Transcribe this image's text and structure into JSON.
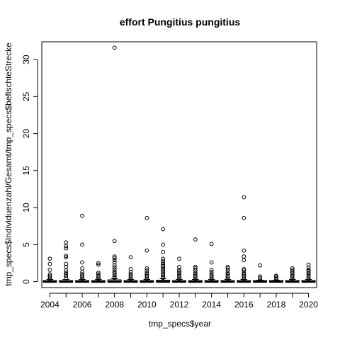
{
  "chart_data": {
    "type": "boxplot",
    "title": "effort Pungitius pungitius",
    "xlabel": "tmp_specs$year",
    "ylabel": "tmp_specs$Individuenzahl/Gesamt/tmp_specs$befischteStrecke",
    "categories": [
      "2004",
      "2005",
      "2006",
      "2007",
      "2008",
      "2009",
      "2010",
      "2011",
      "2012",
      "2013",
      "2014",
      "2015",
      "2016",
      "2017",
      "2018",
      "2019",
      "2020"
    ],
    "x_tick_labels": [
      "2004",
      "2006",
      "2008",
      "2010",
      "2012",
      "2014",
      "2016",
      "2018",
      "2020"
    ],
    "y_ticks": [
      0,
      5,
      10,
      15,
      20,
      25,
      30
    ],
    "ylim": [
      -0.8,
      32.4
    ],
    "boxes": [
      {
        "year": "2004",
        "median": 0,
        "q1": 0,
        "q3": 0.1,
        "whisker_high": 0.3,
        "outliers": [
          0.4,
          0.6,
          0.8,
          1.0,
          1.6,
          2.4,
          3.1
        ]
      },
      {
        "year": "2005",
        "median": 0,
        "q1": 0,
        "q3": 0.1,
        "whisker_high": 0.3,
        "outliers": [
          0.5,
          0.8,
          1.0,
          1.2,
          1.5,
          2.0,
          2.4,
          3.3,
          3.5,
          4.5,
          4.8,
          5.3
        ]
      },
      {
        "year": "2006",
        "median": 0,
        "q1": 0,
        "q3": 0.1,
        "whisker_high": 0.3,
        "outliers": [
          0.4,
          0.6,
          0.8,
          1.0,
          1.3,
          1.8,
          2.6,
          5.0,
          8.9
        ]
      },
      {
        "year": "2007",
        "median": 0,
        "q1": 0,
        "q3": 0.1,
        "whisker_high": 0.3,
        "outliers": [
          0.4,
          0.6,
          0.8,
          1.0,
          1.2,
          2.3,
          2.5
        ]
      },
      {
        "year": "2008",
        "median": 0,
        "q1": 0,
        "q3": 0.2,
        "whisker_high": 0.4,
        "outliers": [
          0.5,
          0.7,
          0.9,
          1.1,
          1.3,
          1.6,
          1.9,
          2.2,
          2.6,
          2.9,
          3.2,
          3.4,
          5.5,
          31.6
        ]
      },
      {
        "year": "2009",
        "median": 0,
        "q1": 0,
        "q3": 0.1,
        "whisker_high": 0.3,
        "outliers": [
          0.4,
          0.6,
          0.8,
          1.0,
          1.3,
          1.7,
          3.3
        ]
      },
      {
        "year": "2010",
        "median": 0,
        "q1": 0,
        "q3": 0.1,
        "whisker_high": 0.3,
        "outliers": [
          0.4,
          0.6,
          0.8,
          1.0,
          1.2,
          1.5,
          1.8,
          4.2,
          8.6
        ]
      },
      {
        "year": "2011",
        "median": 0,
        "q1": 0,
        "q3": 0.15,
        "whisker_high": 0.4,
        "outliers": [
          0.5,
          0.7,
          0.9,
          1.1,
          1.3,
          1.5,
          1.7,
          1.9,
          2.1,
          2.3,
          2.5,
          2.8,
          3.1,
          4.0,
          5.0,
          7.1
        ]
      },
      {
        "year": "2012",
        "median": 0,
        "q1": 0,
        "q3": 0.1,
        "whisker_high": 0.3,
        "outliers": [
          0.4,
          0.6,
          0.8,
          1.0,
          1.2,
          1.4,
          1.6,
          2.0,
          3.1
        ]
      },
      {
        "year": "2013",
        "median": 0,
        "q1": 0,
        "q3": 0.1,
        "whisker_high": 0.3,
        "outliers": [
          0.4,
          0.6,
          0.8,
          1.0,
          1.2,
          1.5,
          1.8,
          2.0,
          5.7
        ]
      },
      {
        "year": "2014",
        "median": 0,
        "q1": 0,
        "q3": 0.1,
        "whisker_high": 0.3,
        "outliers": [
          0.4,
          0.6,
          0.8,
          1.0,
          1.3,
          1.6,
          2.6,
          5.1
        ]
      },
      {
        "year": "2015",
        "median": 0,
        "q1": 0,
        "q3": 0.1,
        "whisker_high": 0.3,
        "outliers": [
          0.4,
          0.6,
          0.8,
          1.0,
          1.2,
          1.5,
          1.8,
          2.0
        ]
      },
      {
        "year": "2016",
        "median": 0,
        "q1": 0,
        "q3": 0.1,
        "whisker_high": 0.3,
        "outliers": [
          0.4,
          0.6,
          0.8,
          1.0,
          1.2,
          1.5,
          1.7,
          2.9,
          3.4,
          4.2,
          8.6,
          11.4
        ]
      },
      {
        "year": "2017",
        "median": 0,
        "q1": 0,
        "q3": 0.1,
        "whisker_high": 0.2,
        "outliers": [
          0.3,
          0.5,
          0.7,
          2.2
        ]
      },
      {
        "year": "2018",
        "median": 0,
        "q1": 0,
        "q3": 0.1,
        "whisker_high": 0.2,
        "outliers": [
          0.3,
          0.5,
          0.7,
          0.8
        ]
      },
      {
        "year": "2019",
        "median": 0,
        "q1": 0,
        "q3": 0.1,
        "whisker_high": 0.3,
        "outliers": [
          0.4,
          0.6,
          0.8,
          1.0,
          1.2,
          1.4,
          1.6,
          1.8
        ]
      },
      {
        "year": "2020",
        "median": 0,
        "q1": 0,
        "q3": 0.1,
        "whisker_high": 0.3,
        "outliers": [
          0.4,
          0.6,
          0.8,
          1.0,
          1.2,
          1.4,
          1.6,
          1.9,
          2.3
        ]
      }
    ],
    "grid": false,
    "legend": "none"
  }
}
